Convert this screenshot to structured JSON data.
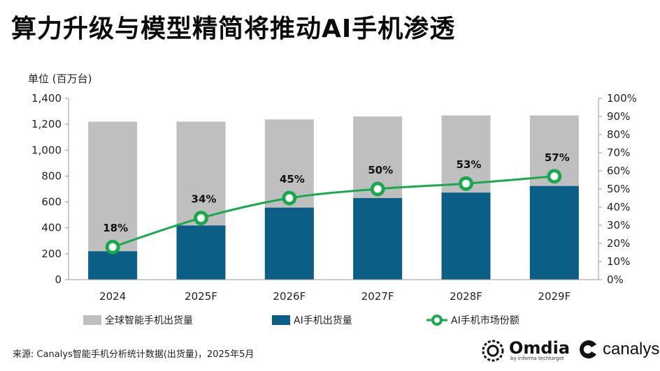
{
  "title": "算力升级与模型精简将推动AI手机渗透",
  "unit_label": "单位 (百万台)",
  "source": "来源: Canalys智能手机分析统计数据(出货量)，2025年5月",
  "logos": {
    "omdia": "Omdia",
    "omdia_sub": "by informa techtarget",
    "canalys": "canalys"
  },
  "colors": {
    "total": "#bfbfbf",
    "ai": "#0b5f86",
    "share": "#1aa84f"
  },
  "chart_data": {
    "type": "bar",
    "categories": [
      "2024",
      "2025F",
      "2026F",
      "2027F",
      "2028F",
      "2029F"
    ],
    "series": [
      {
        "name": "全球智能手机出货量",
        "type": "bar",
        "axis": "left",
        "values": [
          1220,
          1220,
          1237,
          1260,
          1268,
          1268
        ]
      },
      {
        "name": "AI手机出货量",
        "type": "bar",
        "axis": "left",
        "values": [
          219,
          418,
          556,
          630,
          672,
          723
        ]
      },
      {
        "name": "AI手机市场份额",
        "type": "line",
        "axis": "right",
        "values": [
          18,
          34,
          45,
          50,
          53,
          57
        ],
        "labels": [
          "18%",
          "34%",
          "45%",
          "50%",
          "53%",
          "57%"
        ]
      }
    ],
    "y_left": {
      "min": 0,
      "max": 1400,
      "step": 200,
      "ticks": [
        "0",
        "200",
        "400",
        "600",
        "800",
        "1,000",
        "1,200",
        "1,400"
      ]
    },
    "y_right": {
      "min": 0,
      "max": 100,
      "step": 10,
      "ticks": [
        "0%",
        "10%",
        "20%",
        "30%",
        "40%",
        "50%",
        "60%",
        "70%",
        "80%",
        "90%",
        "100%"
      ]
    },
    "legend": [
      "全球智能手机出货量",
      "AI手机出货量",
      "AI手机市场份额"
    ],
    "legend_position": "bottom",
    "grid": false
  }
}
